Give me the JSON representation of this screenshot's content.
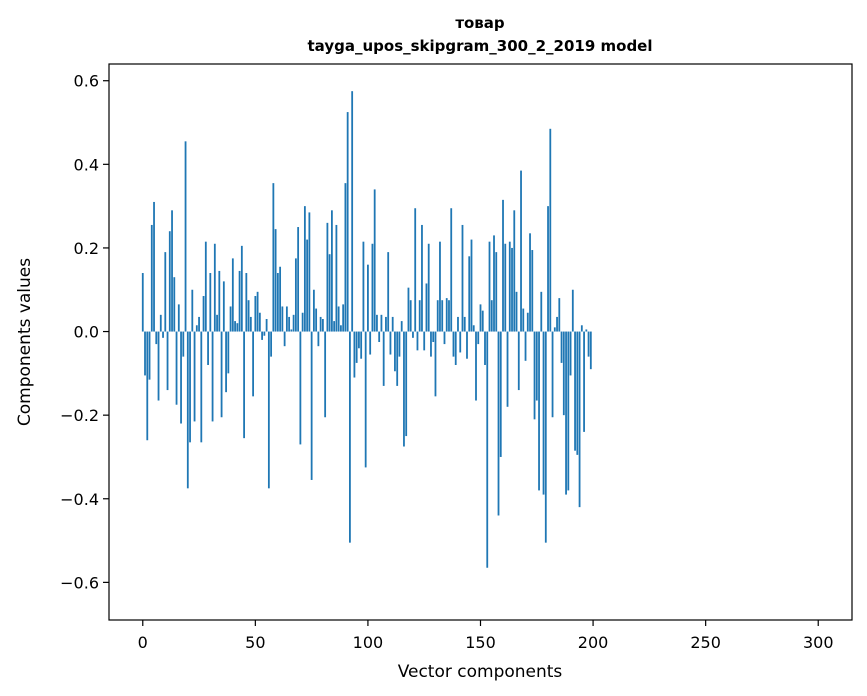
{
  "chart_data": {
    "type": "bar",
    "title": "товар",
    "subtitle": "tayga_upos_skipgram_300_2_2019 model",
    "xlabel": "Vector components",
    "ylabel": "Components values",
    "xlim": [
      -15,
      315
    ],
    "ylim": [
      -0.69,
      0.64
    ],
    "xticks": [
      0,
      50,
      100,
      150,
      200,
      250,
      300
    ],
    "xtick_labels": [
      "0",
      "50",
      "100",
      "150",
      "200",
      "250",
      "300"
    ],
    "yticks": [
      -0.6,
      -0.4,
      -0.2,
      0.0,
      0.2,
      0.4,
      0.6
    ],
    "ytick_labels": [
      "−0.6",
      "−0.4",
      "−0.2",
      "0.0",
      "0.2",
      "0.4",
      "0.6"
    ],
    "bar_color": "#1f77b4",
    "grid": false,
    "values": [
      0.14,
      -0.105,
      -0.26,
      -0.115,
      0.255,
      0.31,
      -0.03,
      -0.165,
      0.04,
      -0.015,
      0.19,
      -0.14,
      0.24,
      0.29,
      0.13,
      -0.175,
      0.065,
      -0.22,
      -0.06,
      0.455,
      -0.375,
      -0.265,
      0.1,
      -0.215,
      0.015,
      0.035,
      -0.265,
      0.085,
      0.215,
      -0.08,
      0.14,
      -0.215,
      0.21,
      0.04,
      0.145,
      -0.205,
      0.12,
      -0.145,
      -0.1,
      0.06,
      0.175,
      0.025,
      0.02,
      0.145,
      0.205,
      -0.255,
      0.14,
      0.075,
      0.035,
      -0.155,
      0.085,
      0.095,
      0.045,
      -0.02,
      -0.01,
      0.03,
      -0.375,
      -0.06,
      0.355,
      0.245,
      0.14,
      0.155,
      0.06,
      -0.035,
      0.06,
      0.035,
      0.005,
      0.04,
      0.175,
      0.25,
      -0.27,
      0.045,
      0.3,
      0.22,
      0.285,
      -0.355,
      0.1,
      0.055,
      -0.035,
      0.035,
      0.03,
      -0.205,
      0.26,
      0.185,
      0.29,
      0.025,
      0.255,
      0.06,
      0.015,
      0.065,
      0.355,
      0.525,
      -0.505,
      0.575,
      -0.11,
      -0.075,
      -0.04,
      -0.065,
      0.215,
      -0.325,
      0.16,
      -0.055,
      0.21,
      0.34,
      0.04,
      -0.025,
      0.04,
      -0.13,
      0.035,
      0.19,
      -0.055,
      0.035,
      -0.095,
      -0.13,
      -0.06,
      0.025,
      -0.275,
      -0.25,
      0.105,
      0.075,
      -0.015,
      0.295,
      -0.045,
      0.075,
      0.255,
      -0.045,
      0.115,
      0.21,
      -0.06,
      -0.025,
      -0.155,
      0.075,
      0.215,
      0.075,
      -0.03,
      0.08,
      0.075,
      0.295,
      -0.06,
      -0.08,
      0.035,
      -0.05,
      0.255,
      0.035,
      -0.065,
      0.18,
      0.22,
      0.015,
      -0.165,
      -0.03,
      0.065,
      0.05,
      -0.08,
      -0.565,
      0.215,
      0.075,
      0.23,
      0.19,
      -0.44,
      -0.3,
      0.315,
      0.21,
      -0.18,
      0.215,
      0.2,
      0.29,
      0.095,
      -0.14,
      0.385,
      0.055,
      -0.07,
      0.045,
      0.235,
      0.195,
      -0.21,
      -0.165,
      -0.38,
      0.095,
      -0.39,
      -0.505,
      0.3,
      0.485,
      -0.205,
      0.01,
      0.035,
      0.08,
      -0.075,
      -0.2,
      -0.39,
      -0.38,
      -0.105,
      0.1,
      -0.285,
      -0.295,
      -0.42,
      0.015,
      -0.24,
      0.005,
      -0.06,
      -0.09
    ]
  }
}
